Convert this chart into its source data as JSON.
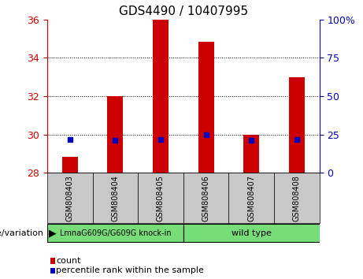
{
  "title": "GDS4490 / 10407995",
  "samples": [
    "GSM808403",
    "GSM808404",
    "GSM808405",
    "GSM808406",
    "GSM808407",
    "GSM808408"
  ],
  "counts": [
    28.85,
    32.0,
    36.0,
    34.85,
    30.0,
    33.0
  ],
  "percentiles": [
    22.0,
    21.5,
    22.0,
    25.0,
    21.5,
    22.0
  ],
  "ymin": 28,
  "ymax": 36,
  "yticks": [
    28,
    30,
    32,
    34,
    36
  ],
  "right_yticks": [
    0,
    25,
    50,
    75,
    100
  ],
  "group_labels": [
    "LmnaG609G/G609G knock-in",
    "wild type"
  ],
  "group_colors": [
    "#77DD77",
    "#77DD77"
  ],
  "group_boundaries": [
    0,
    3,
    6
  ],
  "bar_color": "#CC0000",
  "bar_width": 0.35,
  "marker_color": "#0000BB",
  "marker_size": 5,
  "left_axis_color": "#CC0000",
  "right_axis_color": "#0000BB",
  "sample_bg_color": "#C8C8C8",
  "label_count": "count",
  "label_percentile": "percentile rank within the sample",
  "legend_sq_color_count": "#CC0000",
  "legend_sq_color_pct": "#0000BB"
}
